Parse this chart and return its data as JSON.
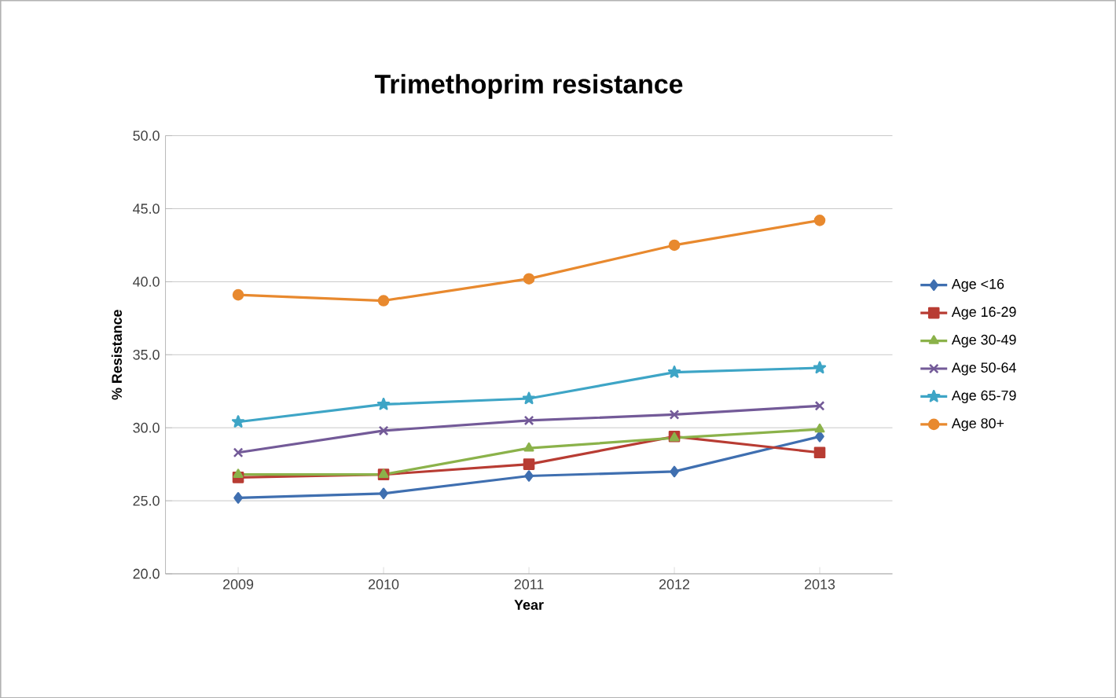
{
  "chart_data": {
    "type": "line",
    "title": "Trimethoprim resistance",
    "xlabel": "Year",
    "ylabel": "% Resistance",
    "categories": [
      "2009",
      "2010",
      "2011",
      "2012",
      "2013"
    ],
    "series": [
      {
        "name": "Age <16",
        "color": "#3f6fb0",
        "marker": "diamond",
        "values": [
          25.2,
          25.5,
          26.7,
          27.0,
          29.4
        ]
      },
      {
        "name": "Age 16-29",
        "color": "#b83c33",
        "marker": "square",
        "values": [
          26.6,
          26.8,
          27.5,
          29.4,
          28.3
        ]
      },
      {
        "name": "Age 30-49",
        "color": "#8bb24a",
        "marker": "triangle",
        "values": [
          26.8,
          26.8,
          28.6,
          29.3,
          29.9
        ]
      },
      {
        "name": "Age 50-64",
        "color": "#735a98",
        "marker": "cross",
        "values": [
          28.3,
          29.8,
          30.5,
          30.9,
          31.5
        ]
      },
      {
        "name": "Age 65-79",
        "color": "#3ea5c6",
        "marker": "star",
        "values": [
          30.4,
          31.6,
          32.0,
          33.8,
          34.1
        ]
      },
      {
        "name": "Age 80+",
        "color": "#e8892e",
        "marker": "circle",
        "values": [
          39.1,
          38.7,
          40.2,
          42.5,
          44.2
        ]
      }
    ],
    "ylim": [
      20,
      50
    ],
    "yticks": [
      {
        "value": 20,
        "label": "20.0"
      },
      {
        "value": 25,
        "label": "25.0"
      },
      {
        "value": 30,
        "label": "30.0"
      },
      {
        "value": 35,
        "label": "35.0"
      },
      {
        "value": 40,
        "label": "40.0"
      },
      {
        "value": 45,
        "label": "45.0"
      },
      {
        "value": 50,
        "label": "50.0"
      }
    ],
    "grid": "y",
    "legend": "right",
    "line_style": "solid"
  }
}
